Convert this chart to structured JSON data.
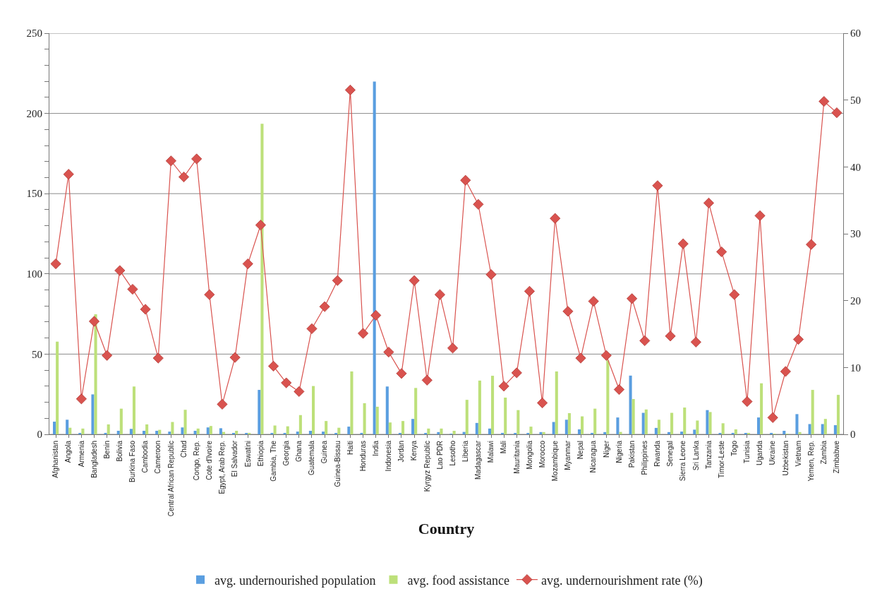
{
  "chart_data": {
    "type": "bar",
    "xlabel": "Country",
    "categories": [
      "Afghanistan",
      "Angola",
      "Armenia",
      "Bangladesh",
      "Benin",
      "Bolivia",
      "Burkina Faso",
      "Cambodia",
      "Cameroon",
      "Central African Republic",
      "Chad",
      "Congo, Rep.",
      "Cote d'Ivoire",
      "Egypt, Arab Rep.",
      "El Salvador",
      "Eswatini",
      "Ethiopia",
      "Gambia, The",
      "Georgia",
      "Ghana",
      "Guatemala",
      "Guinea",
      "Guinea-Bissau",
      "Haiti",
      "Honduras",
      "India",
      "Indonesia",
      "Jordan",
      "Kenya",
      "Kyrgyz Republic",
      "Lao PDR",
      "Lesotho",
      "Liberia",
      "Madagascar",
      "Malawi",
      "Mali",
      "Mauritania",
      "Mongolia",
      "Morocco",
      "Mozambique",
      "Myanmar",
      "Nepal",
      "Nicaragua",
      "Niger",
      "Nigeria",
      "Pakistan",
      "Philippines",
      "Rwanda",
      "Senegal",
      "Sierra Leone",
      "Sri Lanka",
      "Tanzania",
      "Timor-Leste",
      "Togo",
      "Tunisia",
      "Uganda",
      "Ukraine",
      "Uzbekistan",
      "Vietnam",
      "Yemen, Rep.",
      "Zambia",
      "Zimbabwe"
    ],
    "series": [
      {
        "name": "avg. undernourished population",
        "color": "#5a9ee0",
        "values": [
          7.9,
          9.1,
          0.5,
          24.9,
          0.9,
          2.2,
          3.4,
          2.2,
          2.2,
          1.7,
          4.3,
          2.2,
          4.3,
          3.8,
          0.5,
          0.5,
          27.7,
          0.5,
          0.5,
          1.7,
          2.2,
          1.7,
          0.5,
          4.8,
          0.9,
          219.8,
          29.8,
          0.5,
          9.6,
          0.5,
          1.4,
          0.3,
          1.5,
          7.1,
          3.6,
          0.9,
          0.5,
          0.5,
          1.4,
          7.7,
          9.1,
          3.1,
          0.9,
          1.4,
          10.5,
          36.6,
          13.4,
          4.0,
          1.4,
          1.7,
          2.9,
          15.1,
          0.5,
          0.9,
          0.5,
          10.5,
          0.9,
          2.2,
          12.6,
          6.4,
          6.4,
          5.7
        ]
      },
      {
        "name": "avg. food assistance",
        "color": "#bde07a",
        "values": [
          57.8,
          4.1,
          3.6,
          74.8,
          6.2,
          16.0,
          29.8,
          6.2,
          2.8,
          7.7,
          15.3,
          3.6,
          5.2,
          1.5,
          2.2,
          0.9,
          193.5,
          5.5,
          5.0,
          12.0,
          30.1,
          8.3,
          4.1,
          39.2,
          19.4,
          17.2,
          7.4,
          8.3,
          28.9,
          3.6,
          3.6,
          2.2,
          21.5,
          33.5,
          36.5,
          22.9,
          15.1,
          4.8,
          1.4,
          39.2,
          13.2,
          11.2,
          16.0,
          46.1,
          1.5,
          22.0,
          15.5,
          9.1,
          13.4,
          16.7,
          8.6,
          13.9,
          6.9,
          3.1,
          0.5,
          31.8,
          0.3,
          0.3,
          1.4,
          27.7,
          9.6,
          24.6
        ]
      },
      {
        "name": "avg. undernourishment rate (%)",
        "type": "line",
        "axis": "y2",
        "color": "#d9534f",
        "marker": "diamond",
        "line_style": "solid",
        "values": [
          25.5,
          38.9,
          5.3,
          16.9,
          11.8,
          24.5,
          21.7,
          18.7,
          11.4,
          40.9,
          38.5,
          41.2,
          20.9,
          4.5,
          11.5,
          25.5,
          31.3,
          10.2,
          7.7,
          6.4,
          15.8,
          19.1,
          23.0,
          51.5,
          15.1,
          17.8,
          12.3,
          9.1,
          23.0,
          8.1,
          20.9,
          12.9,
          38.0,
          34.4,
          23.9,
          7.2,
          9.2,
          21.4,
          4.7,
          32.3,
          18.4,
          11.4,
          19.9,
          11.8,
          6.7,
          20.3,
          14.0,
          37.2,
          14.7,
          28.5,
          13.8,
          34.6,
          27.3,
          20.9,
          4.9,
          32.7,
          2.5,
          9.4,
          14.2,
          28.4,
          49.8,
          48.1
        ]
      }
    ],
    "ylim": [
      0,
      250
    ],
    "yticks": [
      0,
      {
        "value": 10,
        "label": null
      },
      {
        "value": 20,
        "label": null
      },
      {
        "value": 30,
        "label": null
      },
      {
        "value": 40,
        "label": null
      },
      50,
      {
        "value": 60,
        "label": null
      },
      {
        "value": 70,
        "label": null
      },
      {
        "value": 80,
        "label": null
      },
      {
        "value": 90,
        "label": null
      },
      100,
      {
        "value": 110,
        "label": null
      },
      {
        "value": 120,
        "label": null
      },
      {
        "value": 130,
        "label": null
      },
      {
        "value": 140,
        "label": null
      },
      150,
      {
        "value": 160,
        "label": null
      },
      {
        "value": 170,
        "label": null
      },
      {
        "value": 180,
        "label": null
      },
      {
        "value": 190,
        "label": null
      },
      200,
      {
        "value": 210,
        "label": null
      },
      {
        "value": 220,
        "label": null
      },
      {
        "value": 230,
        "label": null
      },
      {
        "value": 240,
        "label": null
      },
      250
    ],
    "y2lim": [
      0,
      60
    ],
    "y2ticks": [
      0,
      10,
      20,
      30,
      40,
      50,
      60
    ],
    "grid": "y",
    "legend": "bottom"
  }
}
